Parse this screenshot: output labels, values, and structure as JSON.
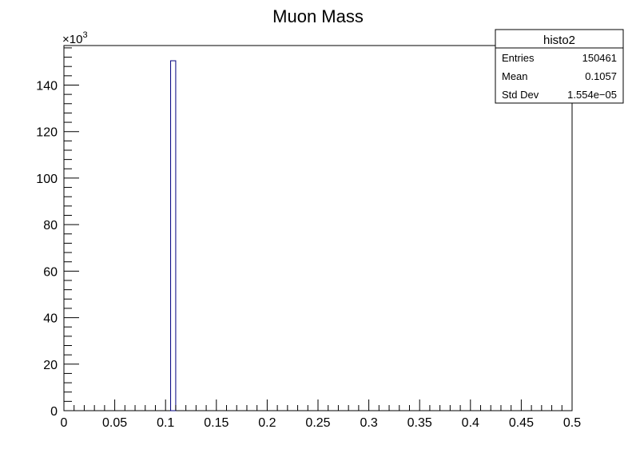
{
  "chart_data": {
    "type": "bar",
    "title": "Muon Mass",
    "xlabel": "",
    "ylabel": "",
    "xlim": [
      0,
      0.5
    ],
    "ylim": [
      0,
      157000
    ],
    "x_ticks": [
      "0",
      "0.05",
      "0.1",
      "0.15",
      "0.2",
      "0.25",
      "0.3",
      "0.35",
      "0.4",
      "0.45",
      "0.5"
    ],
    "y_ticks": [
      "0",
      "20",
      "40",
      "60",
      "80",
      "100",
      "120",
      "140"
    ],
    "y_multiplier": "×10",
    "y_multiplier_exp": "3",
    "bins": [
      {
        "x_low": 0.105,
        "x_high": 0.11,
        "value": 150461
      }
    ],
    "bar_color": "#00007f",
    "grid": false
  },
  "stats_box": {
    "name": "histo2",
    "rows": [
      {
        "label": "Entries",
        "value": "150461"
      },
      {
        "label": "Mean",
        "value": "0.1057"
      },
      {
        "label": "Std Dev",
        "value": "1.554e−05"
      }
    ]
  }
}
